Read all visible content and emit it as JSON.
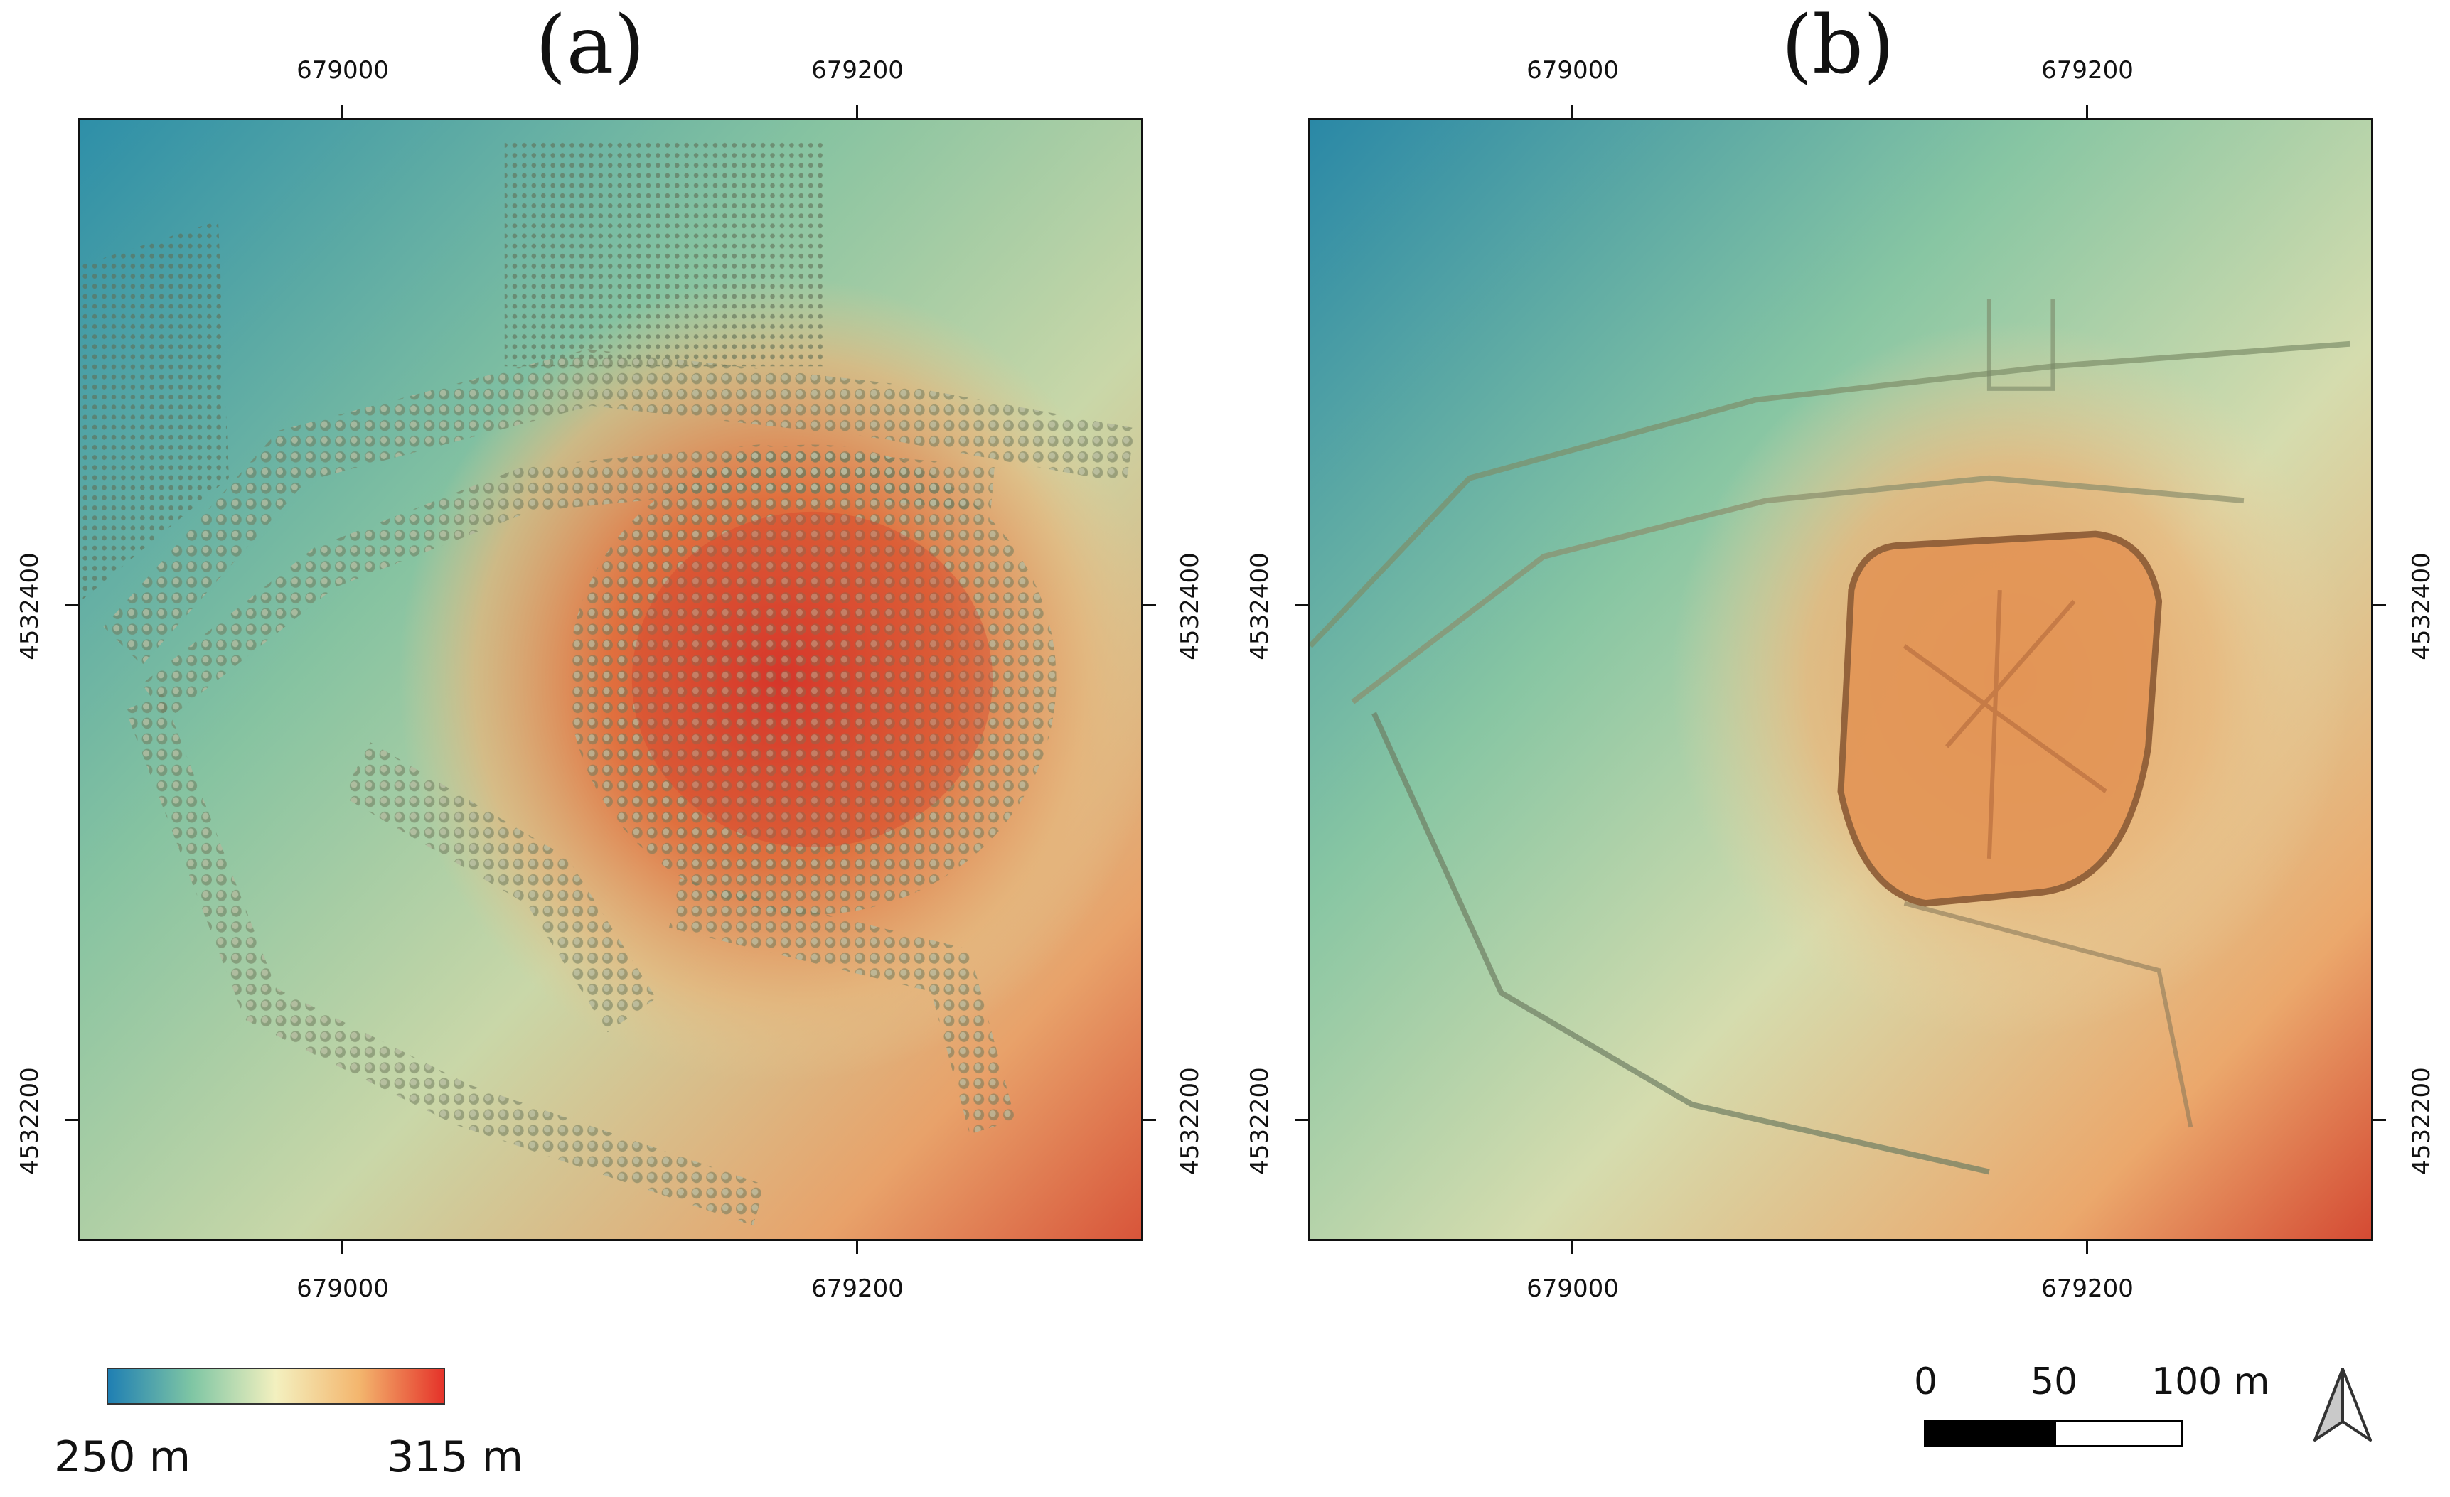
{
  "figure": {
    "panels": [
      {
        "label": "(a)",
        "x_ticks_top": [
          "679000",
          "679200"
        ],
        "x_ticks_bottom": [
          "679000",
          "679200"
        ],
        "y_ticks_left": [
          "4532400",
          "4532200"
        ],
        "y_ticks_right": [
          "4532400",
          "4532200"
        ],
        "surface": "digital surface model with vegetation"
      },
      {
        "label": "(b)",
        "x_ticks_top": [
          "679000",
          "679200"
        ],
        "x_ticks_bottom": [
          "679000",
          "679200"
        ],
        "y_ticks_left": [
          "4532400",
          "4532200"
        ],
        "y_ticks_right": [
          "4532400",
          "4532200"
        ],
        "surface": "digital terrain model"
      }
    ],
    "legend": {
      "min_label": "250 m",
      "max_label": "315 m",
      "colors": [
        "#1f7fb3",
        "#7fc6a4",
        "#f3f0bf",
        "#f3b56d",
        "#e5332a"
      ]
    },
    "scale_bar": {
      "labels": [
        "0",
        "50",
        "100 m"
      ]
    },
    "north_arrow": {
      "icon": "north-arrow-icon"
    }
  }
}
